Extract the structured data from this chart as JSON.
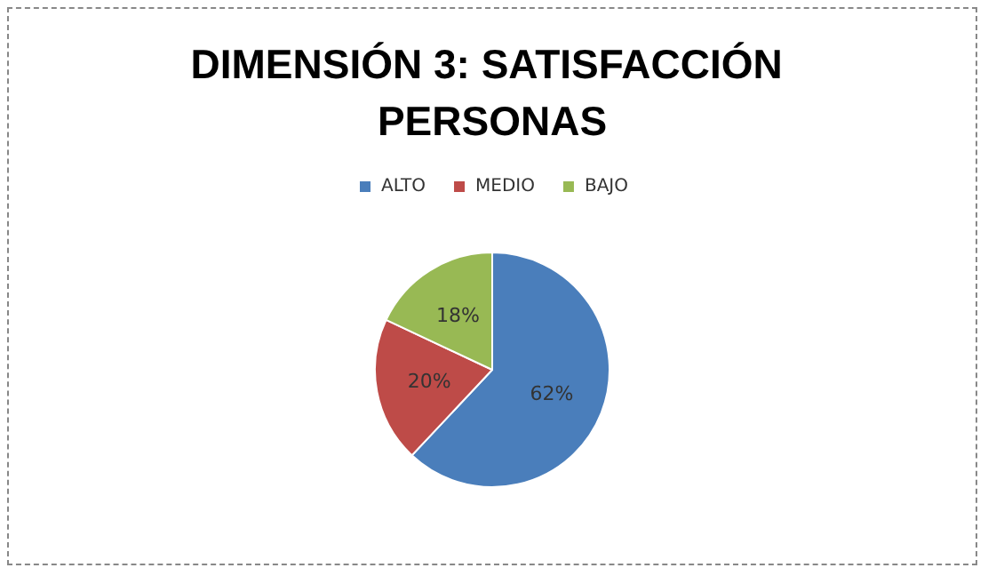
{
  "chart_data": {
    "type": "pie",
    "title": "DIMENSIÓN 3: SATISFACCIÓN PERSONAS",
    "categories": [
      "ALTO",
      "MEDIO",
      "BAJO"
    ],
    "values": [
      62,
      20,
      18
    ],
    "colors": [
      "#4a7ebb",
      "#be4b48",
      "#98b954"
    ],
    "value_labels": [
      "62%",
      "20%",
      "18%"
    ],
    "legend": "top"
  }
}
